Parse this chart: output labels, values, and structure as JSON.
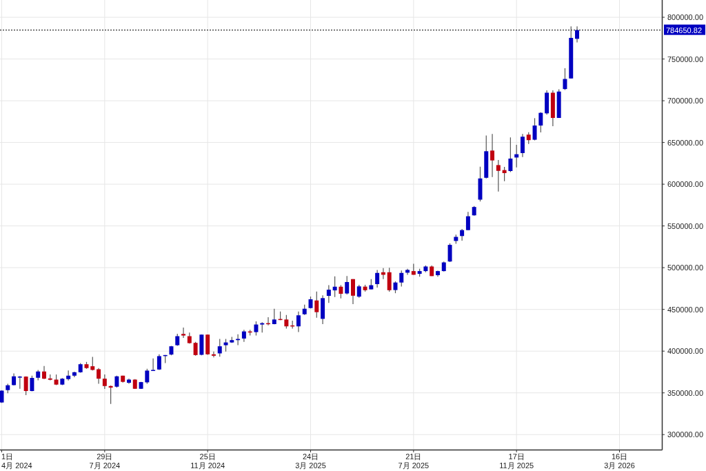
{
  "chart_data": {
    "type": "candlestick",
    "x": [
      "2024-04-01",
      "2024-04-08",
      "2024-04-15",
      "2024-04-22",
      "2024-04-29",
      "2024-05-06",
      "2024-05-13",
      "2024-05-20",
      "2024-05-27",
      "2024-06-03",
      "2024-06-10",
      "2024-06-17",
      "2024-06-24",
      "2024-07-01",
      "2024-07-08",
      "2024-07-15",
      "2024-07-22",
      "2024-07-29",
      "2024-08-05",
      "2024-08-12",
      "2024-08-19",
      "2024-08-26",
      "2024-09-02",
      "2024-09-09",
      "2024-09-16",
      "2024-09-23",
      "2024-09-30",
      "2024-10-07",
      "2024-10-14",
      "2024-10-21",
      "2024-10-28",
      "2024-11-04",
      "2024-11-11",
      "2024-11-18",
      "2024-11-25",
      "2024-12-02",
      "2024-12-09",
      "2024-12-16",
      "2024-12-23",
      "2024-12-30",
      "2025-01-06",
      "2025-01-13",
      "2025-01-20",
      "2025-01-27",
      "2025-02-03",
      "2025-02-10",
      "2025-02-17",
      "2025-02-24",
      "2025-03-03",
      "2025-03-10",
      "2025-03-17",
      "2025-03-24",
      "2025-03-31",
      "2025-04-07",
      "2025-04-14",
      "2025-04-21",
      "2025-04-28",
      "2025-05-05",
      "2025-05-12",
      "2025-05-19",
      "2025-05-26",
      "2025-06-02",
      "2025-06-09",
      "2025-06-16",
      "2025-06-23",
      "2025-06-30",
      "2025-07-07",
      "2025-07-14",
      "2025-07-21",
      "2025-07-28",
      "2025-08-04",
      "2025-08-11",
      "2025-08-18",
      "2025-08-25",
      "2025-09-01",
      "2025-09-08",
      "2025-09-15",
      "2025-09-22",
      "2025-09-29",
      "2025-10-06",
      "2025-10-13",
      "2025-10-20",
      "2025-10-27",
      "2025-11-03",
      "2025-11-10",
      "2025-11-17",
      "2025-11-24",
      "2025-12-01",
      "2025-12-08",
      "2025-12-15",
      "2025-12-22",
      "2025-12-29",
      "2026-01-05",
      "2026-01-12",
      "2026-01-19",
      "2026-01-26"
    ],
    "ohlc": [
      [
        338500,
        353000,
        338000,
        352700
      ],
      [
        353300,
        361000,
        349500,
        359100
      ],
      [
        359300,
        373400,
        358800,
        369800
      ],
      [
        368700,
        370100,
        355000,
        369500
      ],
      [
        369500,
        369800,
        347300,
        352200
      ],
      [
        352200,
        370600,
        351900,
        367900
      ],
      [
        368100,
        377500,
        365100,
        375600
      ],
      [
        375600,
        382100,
        366500,
        367000
      ],
      [
        367300,
        372000,
        365100,
        365700
      ],
      [
        365900,
        372000,
        359300,
        359900
      ],
      [
        359900,
        367800,
        359300,
        367000
      ],
      [
        366500,
        376900,
        364800,
        370600
      ],
      [
        370600,
        375300,
        368700,
        374700
      ],
      [
        374700,
        385700,
        374200,
        384300
      ],
      [
        384300,
        387100,
        378800,
        379700
      ],
      [
        381900,
        393100,
        376900,
        377500
      ],
      [
        378300,
        379700,
        361000,
        367000
      ],
      [
        367000,
        372000,
        354700,
        358200
      ],
      [
        358200,
        358800,
        336800,
        356300
      ],
      [
        357400,
        370600,
        356300,
        369800
      ],
      [
        370600,
        370600,
        362400,
        363200
      ],
      [
        362100,
        367000,
        361000,
        365900
      ],
      [
        365900,
        366500,
        354700,
        354900
      ],
      [
        354900,
        363200,
        354700,
        362900
      ],
      [
        362600,
        378800,
        361000,
        376700
      ],
      [
        376400,
        391200,
        376400,
        377500
      ],
      [
        378000,
        396200,
        377500,
        394000
      ],
      [
        394500,
        395300,
        385700,
        395300
      ],
      [
        395900,
        406300,
        395000,
        405800
      ],
      [
        407100,
        420900,
        406300,
        417900
      ],
      [
        420600,
        428300,
        415900,
        418700
      ],
      [
        417900,
        422300,
        409100,
        409600
      ],
      [
        409900,
        411000,
        394500,
        395300
      ],
      [
        395600,
        420000,
        395000,
        419800
      ],
      [
        419800,
        420000,
        395600,
        396200
      ],
      [
        396200,
        399500,
        392600,
        394500
      ],
      [
        397300,
        414600,
        393400,
        405800
      ],
      [
        407100,
        414600,
        399500,
        410400
      ],
      [
        410400,
        417000,
        409900,
        413200
      ],
      [
        413200,
        420100,
        407100,
        414600
      ],
      [
        415100,
        425500,
        411000,
        423600
      ],
      [
        423600,
        425500,
        418700,
        422300
      ],
      [
        422800,
        435700,
        418700,
        431900
      ],
      [
        431900,
        434600,
        422300,
        433500
      ],
      [
        433500,
        440700,
        431000,
        432400
      ],
      [
        432400,
        450800,
        432100,
        437900
      ],
      [
        438500,
        447500,
        437100,
        437400
      ],
      [
        437900,
        443400,
        426900,
        429700
      ],
      [
        430800,
        436500,
        426900,
        429700
      ],
      [
        429700,
        447500,
        422800,
        442900
      ],
      [
        444200,
        455800,
        443400,
        450800
      ],
      [
        451600,
        465400,
        451100,
        462100
      ],
      [
        460700,
        471400,
        440100,
        446700
      ],
      [
        438700,
        466800,
        432400,
        463500
      ],
      [
        466200,
        479100,
        457700,
        473600
      ],
      [
        472800,
        489600,
        464800,
        477200
      ],
      [
        477200,
        479100,
        463200,
        468700
      ],
      [
        469100,
        489900,
        468000,
        482800
      ],
      [
        486300,
        486300,
        456300,
        466400
      ],
      [
        465300,
        479500,
        463900,
        477600
      ],
      [
        477300,
        479500,
        471300,
        473000
      ],
      [
        474000,
        486300,
        474000,
        479000
      ],
      [
        480300,
        497300,
        476200,
        493700
      ],
      [
        494500,
        499500,
        486300,
        491500
      ],
      [
        494500,
        500000,
        471300,
        473000
      ],
      [
        473200,
        483600,
        469400,
        482200
      ],
      [
        482200,
        496700,
        477300,
        493700
      ],
      [
        494000,
        498600,
        491500,
        497300
      ],
      [
        495900,
        504600,
        491500,
        491500
      ],
      [
        492600,
        498600,
        489100,
        495900
      ],
      [
        495900,
        502700,
        494500,
        501400
      ],
      [
        501400,
        502700,
        489900,
        489900
      ],
      [
        491000,
        496400,
        489100,
        495900
      ],
      [
        495900,
        507400,
        495400,
        506300
      ],
      [
        507400,
        529200,
        506800,
        527300
      ],
      [
        532000,
        539600,
        528700,
        536900
      ],
      [
        537900,
        546400,
        532300,
        545000
      ],
      [
        545000,
        566900,
        545000,
        561600
      ],
      [
        562700,
        573800,
        562200,
        572700
      ],
      [
        581500,
        621000,
        579300,
        606900
      ],
      [
        607700,
        658300,
        606900,
        639500
      ],
      [
        640300,
        660200,
        608600,
        628500
      ],
      [
        622900,
        629000,
        591200,
        616000
      ],
      [
        616900,
        620700,
        603600,
        613300
      ],
      [
        615800,
        656100,
        614600,
        630700
      ],
      [
        632000,
        647200,
        620200,
        635900
      ],
      [
        637300,
        660200,
        632600,
        656900
      ],
      [
        659400,
        662200,
        648300,
        652800
      ],
      [
        653300,
        679100,
        652500,
        670300
      ],
      [
        670300,
        686300,
        662100,
        685500
      ],
      [
        684900,
        712400,
        683300,
        709600
      ],
      [
        709600,
        712400,
        669500,
        679400
      ],
      [
        679400,
        713700,
        679400,
        711000
      ],
      [
        714000,
        739000,
        712900,
        726100
      ],
      [
        726700,
        789000,
        726700,
        775300
      ],
      [
        774200,
        789000,
        769800,
        784650
      ]
    ],
    "colors": [
      "#0000c0",
      "#0000c0",
      "#0000c0",
      "#0000c0",
      "#c00010",
      "#0000c0",
      "#0000c0",
      "#c00010",
      "#c00010",
      "#c00010",
      "#0000c0",
      "#0000c0",
      "#0000c0",
      "#0000c0",
      "#c00010",
      "#c00010",
      "#c00010",
      "#c00010",
      "#c00010",
      "#0000c0",
      "#c00010",
      "#0000c0",
      "#c00010",
      "#0000c0",
      "#0000c0",
      "#0000c0",
      "#0000c0",
      "#0000c0",
      "#0000c0",
      "#0000c0",
      "#c00010",
      "#c00010",
      "#c00010",
      "#0000c0",
      "#c00010",
      "#c00010",
      "#0000c0",
      "#0000c0",
      "#0000c0",
      "#0000c0",
      "#0000c0",
      "#c00010",
      "#0000c0",
      "#0000c0",
      "#c00010",
      "#0000c0",
      "#c00010",
      "#c00010",
      "#c00010",
      "#0000c0",
      "#0000c0",
      "#0000c0",
      "#c00010",
      "#0000c0",
      "#0000c0",
      "#0000c0",
      "#c00010",
      "#0000c0",
      "#c00010",
      "#0000c0",
      "#c00010",
      "#0000c0",
      "#0000c0",
      "#c00010",
      "#c00010",
      "#0000c0",
      "#0000c0",
      "#0000c0",
      "#c00010",
      "#0000c0",
      "#0000c0",
      "#c00010",
      "#0000c0",
      "#0000c0",
      "#0000c0",
      "#0000c0",
      "#0000c0",
      "#0000c0",
      "#0000c0",
      "#0000c0",
      "#0000c0",
      "#c00010",
      "#c00010",
      "#c00010",
      "#0000c0",
      "#0000c0",
      "#0000c0",
      "#c00010",
      "#0000c0",
      "#0000c0",
      "#0000c0",
      "#c00010",
      "#0000c0",
      "#0000c0",
      "#0000c0",
      "#0000c0"
    ],
    "xlim": [
      "2024-03-30",
      "2026-05-04"
    ],
    "xticks": [
      {
        "value": "2024-04-01",
        "label": "1日\n4月 2024"
      },
      {
        "value": "2024-07-29",
        "label": "29日\n7月 2024"
      },
      {
        "value": "2024-11-25",
        "label": "25日\n11月 2024"
      },
      {
        "value": "2025-03-24",
        "label": "24日\n3月 2025"
      },
      {
        "value": "2025-07-21",
        "label": "21日\n7月 2025"
      },
      {
        "value": "2025-11-17",
        "label": "17日\n11月 2025"
      },
      {
        "value": "2026-03-16",
        "label": "16日\n3月 2026"
      }
    ],
    "ylim": [
      282000,
      820700
    ],
    "yticks": [
      {
        "value": 300000,
        "label": "300000.00"
      },
      {
        "value": 350000,
        "label": "350000.00"
      },
      {
        "value": 400000,
        "label": "400000.00"
      },
      {
        "value": 450000,
        "label": "450000.00"
      },
      {
        "value": 500000,
        "label": "500000.00"
      },
      {
        "value": 550000,
        "label": "550000.00"
      },
      {
        "value": 600000,
        "label": "600000.00"
      },
      {
        "value": 650000,
        "label": "650000.00"
      },
      {
        "value": 700000,
        "label": "700000.00"
      },
      {
        "value": 750000,
        "label": "750000.00"
      },
      {
        "value": 800000,
        "label": "800000.00"
      }
    ],
    "grid": true,
    "ref_lines": [
      {
        "axis": "y",
        "value": 784650.82,
        "label": "784650.82",
        "color": "#000000",
        "line_style": "dotted"
      }
    ]
  }
}
